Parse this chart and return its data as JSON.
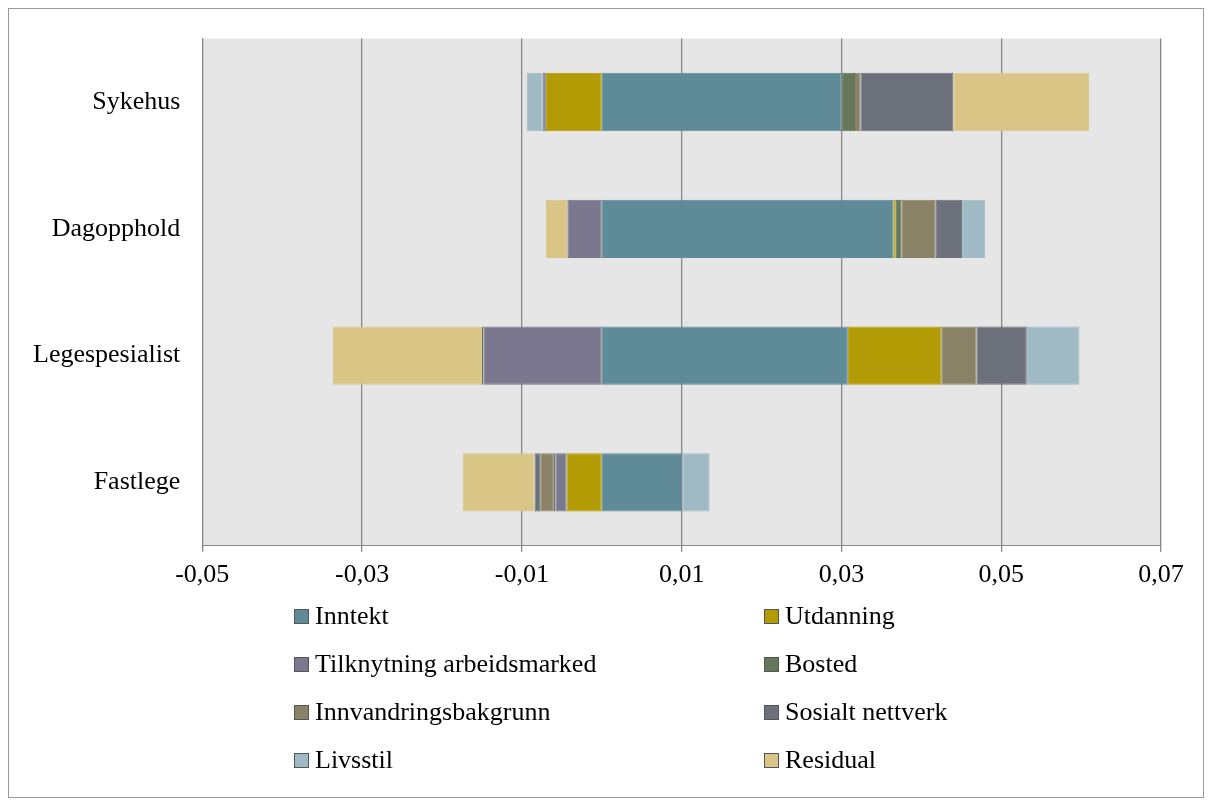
{
  "chart_data": {
    "type": "bar",
    "orientation": "horizontal",
    "stacked": true,
    "categories": [
      "Sykehus",
      "Dagopphold",
      "Legespesialist",
      "Fastlege"
    ],
    "series": [
      {
        "name": "Inntekt",
        "color": "#5f8b99",
        "values": [
          0.03,
          0.0365,
          0.0308,
          0.0101
        ]
      },
      {
        "name": "Utdanning",
        "color": "#b39b06",
        "values": [
          -0.007,
          0.0003,
          0.0117,
          -0.0044
        ]
      },
      {
        "name": "Tilknytning arbeidsmarked",
        "color": "#7b778f",
        "values": [
          -0.0004,
          -0.0043,
          -0.0148,
          -0.0014
        ]
      },
      {
        "name": "Bosted",
        "color": "#66785a",
        "values": [
          0.0017,
          0.0007,
          -0.0002,
          -0.0002
        ]
      },
      {
        "name": "Innvandringsbakgrunn",
        "color": "#8a8266",
        "values": [
          0.0007,
          0.0043,
          0.0044,
          -0.0017
        ]
      },
      {
        "name": "Sosialt nettverk",
        "color": "#6d717b",
        "values": [
          0.0116,
          0.0033,
          0.0063,
          -0.0007
        ]
      },
      {
        "name": "Livsstil",
        "color": "#a0bac5",
        "values": [
          -0.002,
          0.0029,
          0.0066,
          0.0034
        ]
      },
      {
        "name": "Residual",
        "color": "#d9c687",
        "values": [
          0.017,
          -0.0027,
          -0.0187,
          -0.009
        ]
      }
    ],
    "xlim": [
      -0.05,
      0.07
    ],
    "xticks": [
      {
        "value": -0.05,
        "label": "-0,05"
      },
      {
        "value": -0.03,
        "label": "-0,03"
      },
      {
        "value": -0.01,
        "label": "-0,01"
      },
      {
        "value": 0.01,
        "label": "0,01"
      },
      {
        "value": 0.03,
        "label": "0,03"
      },
      {
        "value": 0.05,
        "label": "0,05"
      },
      {
        "value": 0.07,
        "label": "0,07"
      }
    ],
    "grid": "x",
    "legend": "bottom"
  }
}
